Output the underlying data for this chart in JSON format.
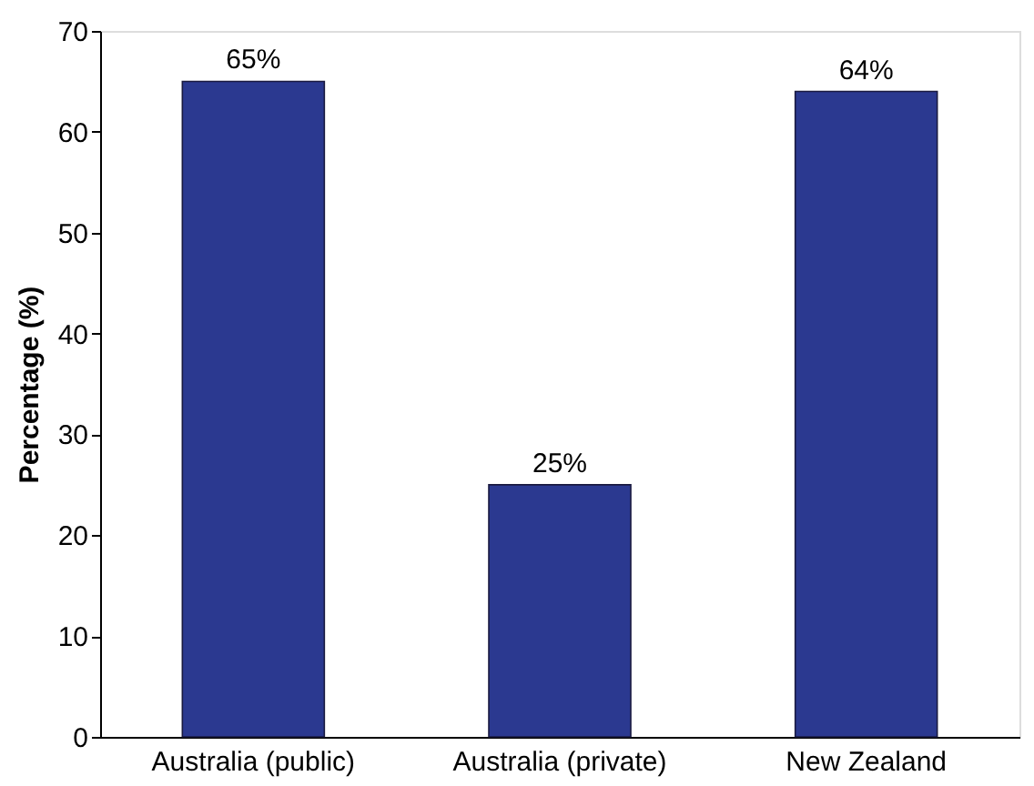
{
  "chart_data": {
    "type": "bar",
    "ylabel": "Percentage (%)",
    "categories": [
      "Australia (public)",
      "Australia (private)",
      "New Zealand"
    ],
    "values": [
      65,
      25,
      64
    ],
    "color": "#2b3990",
    "value_labels": [
      "65%",
      "25%",
      "64%"
    ],
    "ylim": [
      0,
      70
    ],
    "yticks": [
      0,
      10,
      20,
      30,
      40,
      50,
      60,
      70
    ],
    "grid": false
  }
}
